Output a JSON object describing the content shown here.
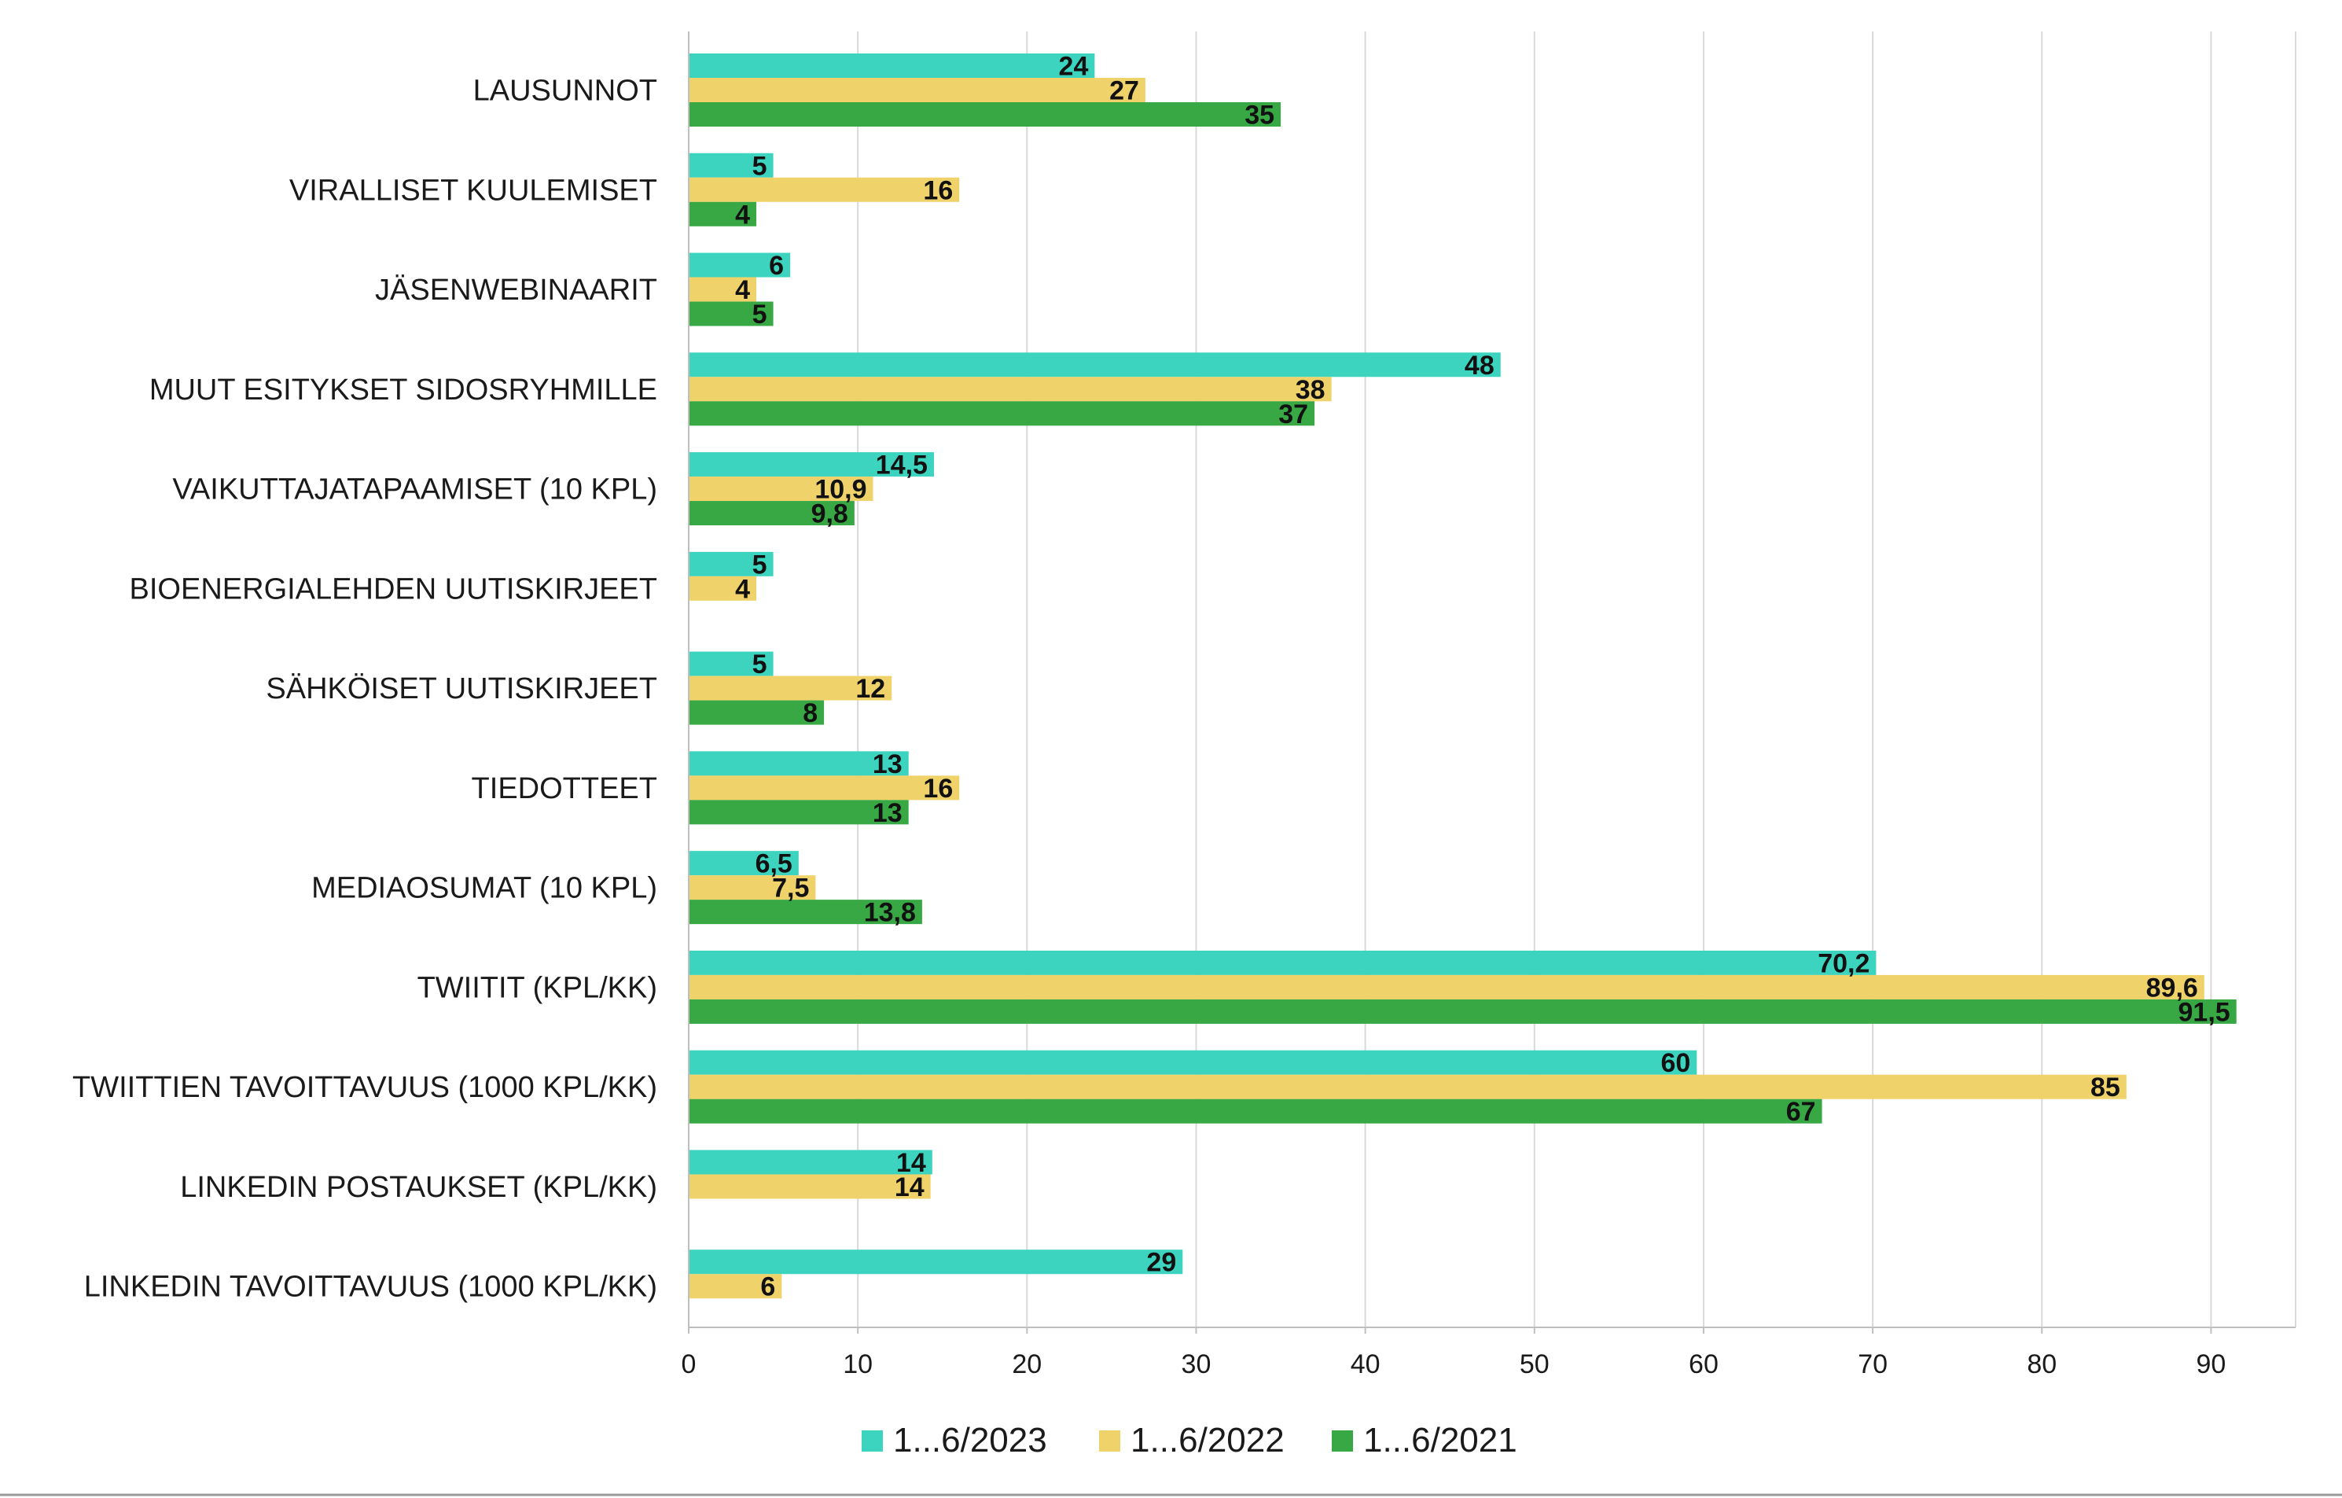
{
  "chart_data": {
    "type": "bar",
    "orientation": "horizontal",
    "categories": [
      "LAUSUNNOT",
      "VIRALLISET KUULEMISET",
      "JÄSENWEBINAARIT",
      "MUUT ESITYKSET SIDOSRYHMILLE",
      "VAIKUTTAJATAPAAMISET (10 KPL)",
      "BIOENERGIALEHDEN UUTISKIRJEET",
      "SÄHKÖISET UUTISKIRJEET",
      "TIEDOTTEET",
      "MEDIAOSUMAT (10 KPL)",
      "TWIITIT (KPL/KK)",
      "TWIITTIEN TAVOITTAVUUS (1000 KPL/KK)",
      "LINKEDIN POSTAUKSET (KPL/KK)",
      "LINKEDIN TAVOITTAVUUS (1000 KPL/KK)"
    ],
    "series": [
      {
        "name": "1...6/2023",
        "color": "#3dd4bf",
        "values": [
          24,
          5,
          6,
          48,
          14.5,
          5,
          5,
          13,
          6.5,
          70.2,
          59.6,
          14.4,
          29.2
        ],
        "labels": [
          "24",
          "5",
          "6",
          "48",
          "14,5",
          "5",
          "5",
          "13",
          "6,5",
          "70,2",
          "60",
          "14",
          "29"
        ]
      },
      {
        "name": "1...6/2022",
        "color": "#f0d26b",
        "values": [
          27,
          16,
          4,
          38,
          10.9,
          4,
          12,
          16,
          7.5,
          89.6,
          85,
          14.3,
          5.5
        ],
        "labels": [
          "27",
          "16",
          "4",
          "38",
          "10,9",
          "4",
          "12",
          "16",
          "7,5",
          "89,6",
          "85",
          "14",
          "6"
        ]
      },
      {
        "name": "1...6/2021",
        "color": "#37a843",
        "values": [
          35,
          4,
          5,
          37,
          9.8,
          null,
          8,
          13,
          13.8,
          91.5,
          67,
          null,
          null
        ],
        "labels": [
          "35",
          "4",
          "5",
          "37",
          "9,8",
          "",
          "8",
          "13",
          "13,8",
          "91,5",
          "67",
          "",
          ""
        ]
      }
    ],
    "xlim": [
      0,
      95
    ],
    "xticks": [
      0,
      10,
      20,
      30,
      40,
      50,
      60,
      70,
      80,
      90
    ],
    "xtick_labels": [
      "0",
      "10",
      "20",
      "30",
      "40",
      "50",
      "60",
      "70",
      "80",
      "90"
    ],
    "grid": "vertical",
    "legend_position": "bottom",
    "title": "",
    "xlabel": "",
    "ylabel": ""
  }
}
